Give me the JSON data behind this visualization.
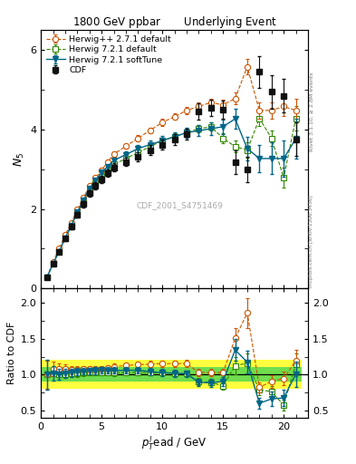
{
  "title_left": "1800 GeV ppbar",
  "title_right": "Underlying Event",
  "ylabel_main": "$N_5$",
  "ylabel_ratio": "Ratio to CDF",
  "xlabel": "$p_T^{l}$ead / GeV",
  "right_label_top": "Rivet 3.1.10, ≥ 2.8M events",
  "right_label_bottom": "mcplots.cern.ch [arXiv:1306.3436]",
  "watermark": "CDF_2001_S4751469",
  "cdf_x": [
    0.5,
    1.0,
    1.5,
    2.0,
    2.5,
    3.0,
    3.5,
    4.0,
    4.5,
    5.0,
    5.5,
    6.0,
    7.0,
    8.0,
    9.0,
    10.0,
    11.0,
    12.0,
    13.0,
    14.0,
    15.0,
    16.0,
    17.0,
    18.0,
    19.0,
    20.0,
    21.0
  ],
  "cdf_y": [
    0.28,
    0.62,
    0.93,
    1.25,
    1.55,
    1.85,
    2.12,
    2.4,
    2.58,
    2.75,
    2.9,
    3.05,
    3.18,
    3.32,
    3.48,
    3.62,
    3.75,
    3.88,
    4.45,
    4.55,
    4.5,
    3.18,
    3.0,
    5.45,
    4.95,
    4.85,
    3.75
  ],
  "cdf_yerr": [
    0.05,
    0.05,
    0.06,
    0.06,
    0.07,
    0.07,
    0.08,
    0.08,
    0.09,
    0.09,
    0.09,
    0.1,
    0.1,
    0.11,
    0.12,
    0.12,
    0.13,
    0.13,
    0.2,
    0.2,
    0.22,
    0.3,
    0.32,
    0.4,
    0.42,
    0.42,
    0.42
  ],
  "hw_x": [
    0.5,
    1.0,
    1.5,
    2.0,
    2.5,
    3.0,
    3.5,
    4.0,
    4.5,
    5.0,
    5.5,
    6.0,
    7.0,
    8.0,
    9.0,
    10.0,
    11.0,
    12.0,
    13.0,
    14.0,
    15.0,
    16.0,
    17.0,
    18.0,
    19.0,
    20.0,
    21.0
  ],
  "hw_y": [
    0.28,
    0.67,
    1.0,
    1.35,
    1.65,
    1.98,
    2.28,
    2.58,
    2.78,
    2.98,
    3.18,
    3.38,
    3.58,
    3.78,
    3.98,
    4.18,
    4.32,
    4.48,
    4.58,
    4.68,
    4.62,
    4.78,
    5.58,
    4.48,
    4.48,
    4.58,
    4.48
  ],
  "hw_yerr": [
    0.02,
    0.03,
    0.03,
    0.03,
    0.04,
    0.04,
    0.04,
    0.05,
    0.05,
    0.05,
    0.06,
    0.06,
    0.06,
    0.07,
    0.07,
    0.08,
    0.08,
    0.09,
    0.1,
    0.1,
    0.12,
    0.15,
    0.2,
    0.2,
    0.2,
    0.25,
    0.3
  ],
  "hw721_x": [
    0.5,
    1.0,
    1.5,
    2.0,
    2.5,
    3.0,
    3.5,
    4.0,
    4.5,
    5.0,
    5.5,
    6.0,
    7.0,
    8.0,
    9.0,
    10.0,
    11.0,
    12.0,
    13.0,
    14.0,
    15.0,
    16.0,
    17.0,
    18.0,
    19.0,
    20.0,
    21.0
  ],
  "hw721_y": [
    0.28,
    0.63,
    0.93,
    1.26,
    1.57,
    1.88,
    2.17,
    2.47,
    2.65,
    2.82,
    2.97,
    3.12,
    3.27,
    3.42,
    3.57,
    3.72,
    3.82,
    3.92,
    4.02,
    4.07,
    3.78,
    3.57,
    3.48,
    4.28,
    3.78,
    2.78,
    4.28
  ],
  "hw721_yerr": [
    0.02,
    0.03,
    0.03,
    0.03,
    0.04,
    0.04,
    0.04,
    0.05,
    0.05,
    0.05,
    0.06,
    0.06,
    0.06,
    0.07,
    0.07,
    0.08,
    0.08,
    0.09,
    0.1,
    0.1,
    0.12,
    0.15,
    0.2,
    0.2,
    0.2,
    0.25,
    0.3
  ],
  "soft_x": [
    0.5,
    1.0,
    1.5,
    2.0,
    2.5,
    3.0,
    3.5,
    4.0,
    4.5,
    5.0,
    5.5,
    6.0,
    7.0,
    8.0,
    9.0,
    10.0,
    11.0,
    12.0,
    13.0,
    14.0,
    15.0,
    16.0,
    17.0,
    18.0,
    19.0,
    20.0,
    21.0
  ],
  "soft_y": [
    0.28,
    0.63,
    0.93,
    1.27,
    1.59,
    1.92,
    2.22,
    2.52,
    2.72,
    2.92,
    3.07,
    3.22,
    3.37,
    3.52,
    3.62,
    3.72,
    3.82,
    3.92,
    3.97,
    4.02,
    4.07,
    4.27,
    3.52,
    3.27,
    3.27,
    3.27,
    3.77
  ],
  "soft_yerr": [
    0.03,
    0.04,
    0.04,
    0.05,
    0.05,
    0.06,
    0.06,
    0.07,
    0.07,
    0.08,
    0.08,
    0.09,
    0.09,
    0.1,
    0.1,
    0.11,
    0.12,
    0.13,
    0.14,
    0.15,
    0.18,
    0.25,
    0.3,
    0.35,
    0.4,
    0.45,
    0.5
  ],
  "color_cdf": "#111111",
  "color_hw": "#cc5500",
  "color_hw721": "#338800",
  "color_soft": "#006688",
  "ylim_main": [
    0,
    6.5
  ],
  "ylim_ratio": [
    0.4,
    2.2
  ],
  "xlim": [
    0,
    22
  ],
  "yticks_main": [
    0,
    2,
    4,
    6
  ],
  "yticks_ratio": [
    0.5,
    1.0,
    1.5,
    2.0
  ],
  "band_yellow_ratio": 0.2,
  "band_green_ratio": 0.1
}
